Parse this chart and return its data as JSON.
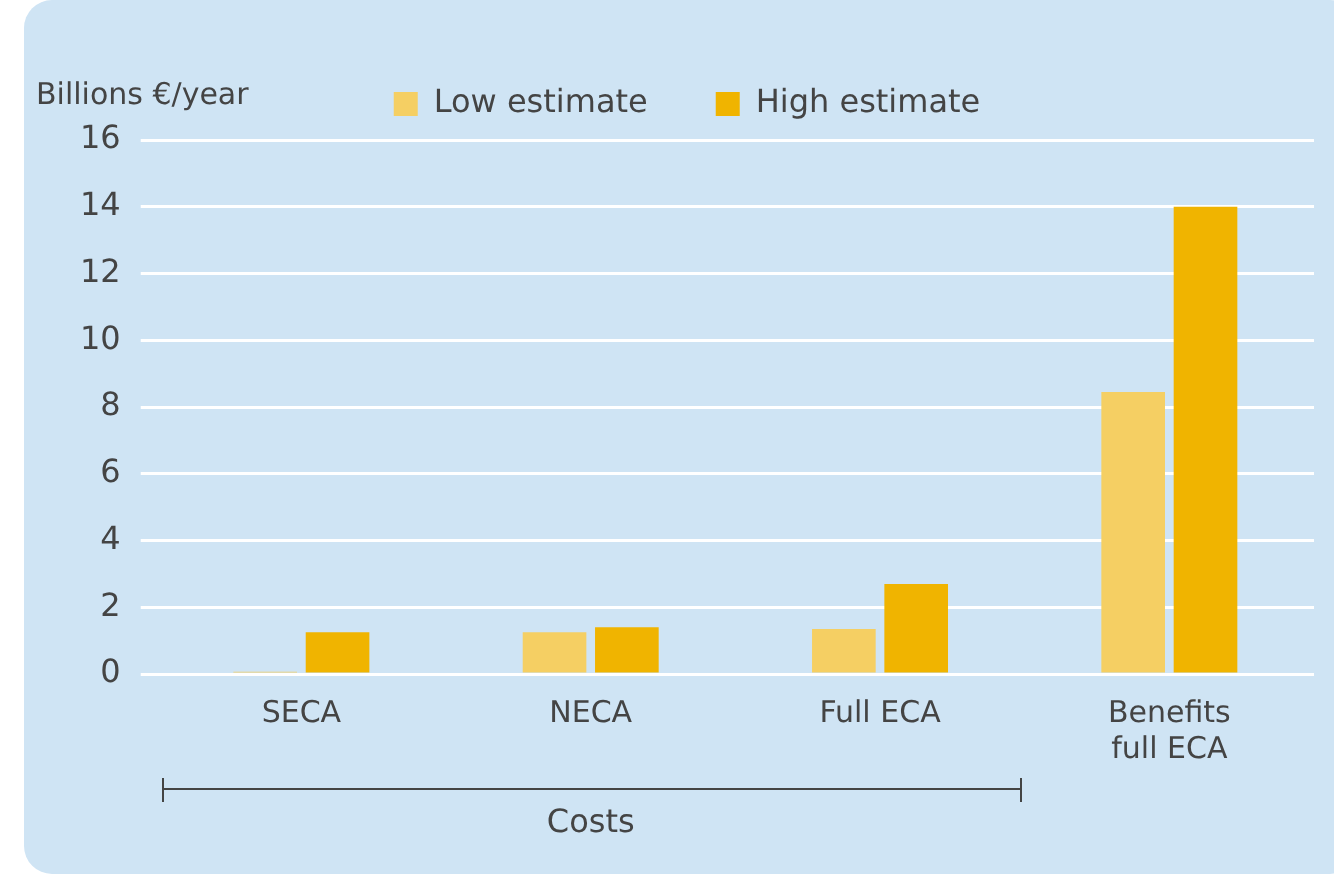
{
  "chart_data": {
    "type": "bar",
    "ylabel": "Billions €/year",
    "categories": [
      "SECA",
      "NECA",
      "Full ECA",
      "Benefits full ECA"
    ],
    "series": [
      {
        "name": "Low estimate",
        "color": "#f5cf63",
        "values": [
          0.07,
          1.25,
          1.35,
          8.45
        ]
      },
      {
        "name": "High estimate",
        "color": "#f0b400",
        "values": [
          1.25,
          1.4,
          2.7,
          14
        ]
      }
    ],
    "ylim": [
      0,
      16
    ],
    "yticks": [
      0,
      2,
      4,
      6,
      8,
      10,
      12,
      14,
      16
    ],
    "grid": "y",
    "legend": "top",
    "annotations": [
      "Costs"
    ]
  }
}
